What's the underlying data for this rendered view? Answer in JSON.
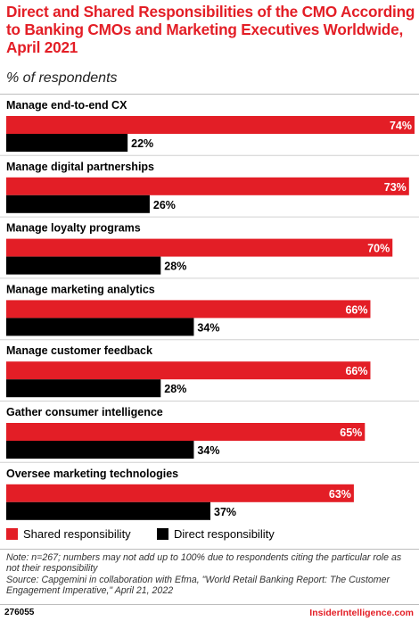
{
  "title": "Direct and Shared Responsibilities of the CMO According to Banking CMOs and Marketing Executives Worldwide, April 2021",
  "subtitle": "% of respondents",
  "colors": {
    "shared": "#e31e26",
    "direct": "#000000",
    "accent": "#e31e26"
  },
  "chart_data": {
    "type": "bar",
    "orientation": "horizontal",
    "categories": [
      "Manage end-to-end CX",
      "Manage digital partnerships",
      "Manage loyalty programs",
      "Manage marketing analytics",
      "Manage customer feedback",
      "Gather consumer intelligence",
      "Oversee marketing technologies"
    ],
    "series": [
      {
        "name": "Shared responsibility",
        "values": [
          74,
          73,
          70,
          66,
          66,
          65,
          63
        ],
        "color": "#e31e26"
      },
      {
        "name": "Direct responsibility",
        "values": [
          22,
          26,
          28,
          34,
          28,
          34,
          37
        ],
        "color": "#000000"
      }
    ],
    "value_suffix": "%",
    "xlim": [
      0,
      74
    ],
    "legend": "bottom-left",
    "grid": false
  },
  "legend": {
    "shared_label": "Shared responsibility",
    "direct_label": "Direct responsibility"
  },
  "note": "Note: n=267; numbers may not add up to 100% due to respondents citing the particular role as not their responsibility",
  "source": "Source: Capgemini in collaboration with Efma, \"World Retail Banking Report: The Customer Engagement Imperative,\" April 21, 2022",
  "footer": {
    "id": "276055",
    "brand": "InsiderIntelligence.com"
  }
}
